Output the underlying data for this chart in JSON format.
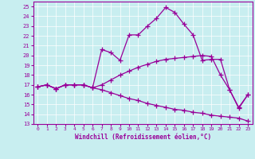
{
  "xlabel": "Windchill (Refroidissement éolien,°C)",
  "bg_color": "#c8eef0",
  "line_color": "#990099",
  "grid_color": "#ffffff",
  "xlim": [
    -0.5,
    23.5
  ],
  "ylim": [
    13,
    25.5
  ],
  "yticks": [
    13,
    14,
    15,
    16,
    17,
    18,
    19,
    20,
    21,
    22,
    23,
    24,
    25
  ],
  "xticks": [
    0,
    1,
    2,
    3,
    4,
    5,
    6,
    7,
    8,
    9,
    10,
    11,
    12,
    13,
    14,
    15,
    16,
    17,
    18,
    19,
    20,
    21,
    22,
    23
  ],
  "line1_x": [
    0,
    1,
    2,
    3,
    4,
    5,
    6,
    7,
    8,
    9,
    10,
    11,
    12,
    13,
    14,
    15,
    16,
    17,
    18,
    19,
    20,
    21,
    22,
    23
  ],
  "line1_y": [
    16.8,
    17.0,
    16.6,
    17.0,
    17.0,
    17.0,
    16.7,
    20.6,
    20.3,
    19.5,
    22.1,
    22.1,
    23.0,
    23.8,
    24.9,
    24.4,
    23.2,
    22.1,
    19.5,
    19.6,
    19.6,
    16.5,
    14.6,
    16.0
  ],
  "line2_x": [
    0,
    1,
    2,
    3,
    4,
    5,
    6,
    7,
    8,
    9,
    10,
    11,
    12,
    13,
    14,
    15,
    16,
    17,
    18,
    19,
    20,
    21,
    22,
    23
  ],
  "line2_y": [
    16.8,
    17.0,
    16.6,
    17.0,
    17.0,
    17.0,
    16.7,
    17.0,
    17.5,
    18.0,
    18.4,
    18.8,
    19.1,
    19.4,
    19.6,
    19.7,
    19.8,
    19.9,
    20.0,
    19.9,
    18.0,
    16.5,
    14.7,
    16.0
  ],
  "line3_x": [
    0,
    1,
    2,
    3,
    4,
    5,
    6,
    7,
    8,
    9,
    10,
    11,
    12,
    13,
    14,
    15,
    16,
    17,
    18,
    19,
    20,
    21,
    22,
    23
  ],
  "line3_y": [
    16.8,
    17.0,
    16.6,
    17.0,
    17.0,
    17.0,
    16.7,
    16.5,
    16.2,
    15.9,
    15.6,
    15.4,
    15.1,
    14.9,
    14.7,
    14.5,
    14.4,
    14.2,
    14.1,
    13.9,
    13.8,
    13.7,
    13.6,
    13.3
  ]
}
